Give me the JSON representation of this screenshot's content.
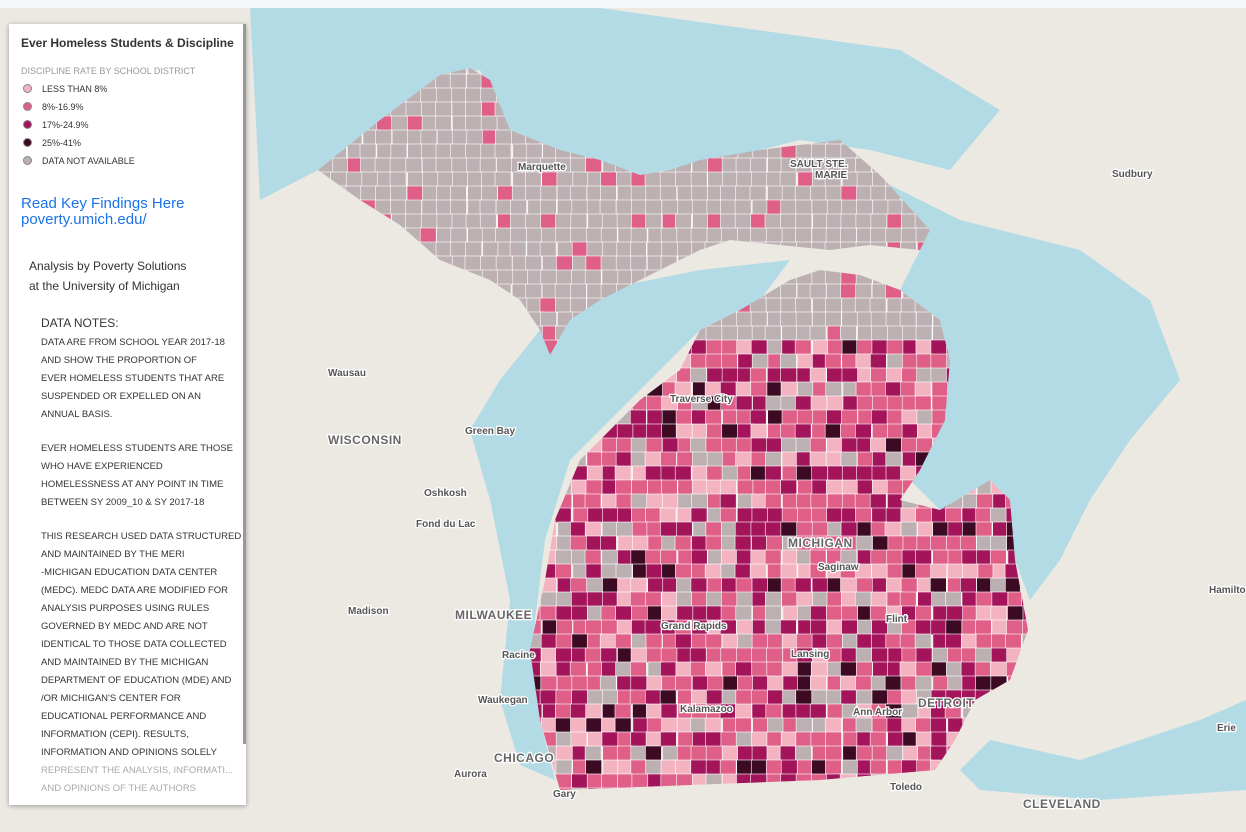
{
  "panel": {
    "title": "Ever Homeless Students & Discipline",
    "legend": {
      "heading": "DISCIPLINE RATE BY SCHOOL DISTRICT",
      "items": [
        {
          "label": "LESS THAN 8%",
          "color": "#f4b3c0"
        },
        {
          "label": "8%-16.9%",
          "color": "#df5f88"
        },
        {
          "label": "17%-24.9%",
          "color": "#a3145a"
        },
        {
          "label": "25%-41%",
          "color": "#3d0a24"
        },
        {
          "label": "DATA NOT AVAILABLE",
          "color": "#bcb0b2"
        }
      ]
    },
    "link": [
      "Read Key Findings Here",
      "poverty.umich.edu/"
    ],
    "credit": [
      "Analysis by Poverty Solutions",
      "at the University of Michigan"
    ],
    "notes": {
      "heading": "DATA NOTES:",
      "paragraphs": [
        [
          "DATA ARE FROM SCHOOL YEAR 2017-18",
          "AND SHOW THE PROPORTION OF",
          "EVER HOMELESS STUDENTS THAT ARE",
          "SUSPENDED OR EXPELLED ON AN",
          "ANNUAL BASIS."
        ],
        [
          "EVER HOMELESS STUDENTS ARE THOSE",
          "WHO HAVE EXPERIENCED",
          "HOMELESSNESS AT ANY POINT IN TIME",
          "BETWEEN SY 2009_10 & SY 2017-18"
        ],
        [
          "THIS RESEARCH USED DATA STRUCTURED",
          "AND MAINTAINED BY THE MERI",
          "-MICHIGAN EDUCATION DATA CENTER",
          "(MEDC). MEDC DATA ARE MODIFIED FOR",
          "ANALYSIS PURPOSES USING RULES",
          "GOVERNED BY MEDC AND ARE NOT",
          "IDENTICAL TO THOSE DATA COLLECTED",
          "AND MAINTAINED BY THE MICHIGAN",
          "DEPARTMENT OF EDUCATION (MDE) AND",
          "/OR MICHIGAN'S CENTER FOR",
          "EDUCATIONAL PERFORMANCE AND",
          "INFORMATION (CEPI). RESULTS,",
          "INFORMATION AND OPINIONS SOLELY",
          "REPRESENT THE ANALYSIS, INFORMATI...",
          "AND OPINIONS OF THE AUTHORS"
        ]
      ]
    }
  },
  "map": {
    "labels": [
      "Marquette",
      "SAULT STE.",
      "MARIE",
      "Sudbury",
      "Wausau",
      "Traverse City",
      "WISCONSIN",
      "Green Bay",
      "Oshkosh",
      "Fond du Lac",
      "MICHIGAN",
      "Saginaw",
      "Madison",
      "MILWAUKEE",
      "Grand Rapids",
      "Flint",
      "Hamilto",
      "Racine",
      "Lansing",
      "Waukegan",
      "Kalamazoo",
      "Ann Arbor",
      "DETROIT",
      "Erie",
      "CHICAGO",
      "Aurora",
      "Gary",
      "Toledo",
      "CLEVELAND"
    ]
  }
}
